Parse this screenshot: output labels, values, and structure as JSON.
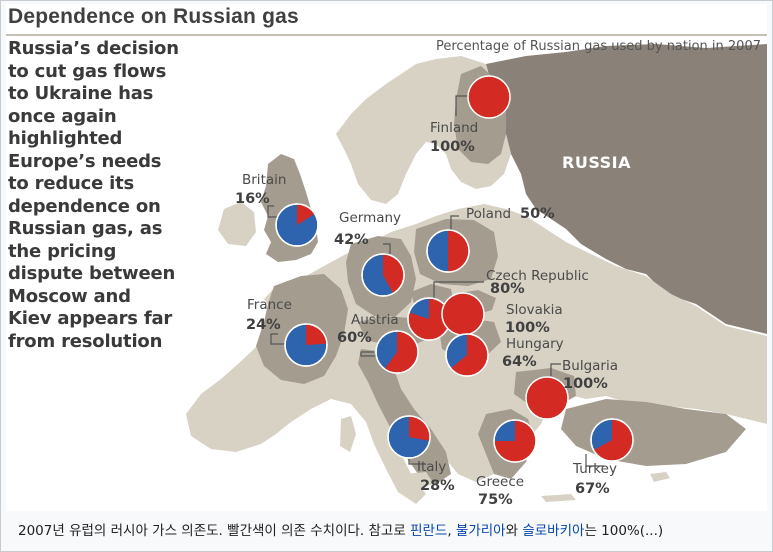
{
  "figure": {
    "title": "Dependence on Russian gas",
    "headline": "Russia’s decision\nto cut gas flows\nto Ukraine has\nonce again\nhighlighted\nEurope’s needs\nto reduce its\ndependence on\nRussian gas, as\nthe pricing\ndispute between\nMoscow and\nKiev appears far\nfrom resolution",
    "subtitle": "Percentage of Russian gas used by nation in 2007",
    "russia_label": "RUSSIA"
  },
  "colors": {
    "russian_share": "#d42a24",
    "other_share": "#2e63ad",
    "sea": "#ffffff",
    "land": "#d8d2c5",
    "land_highlight": "#a49c8f",
    "russia_land": "#8a8279"
  },
  "countries": [
    {
      "name": "Finland",
      "percent_label": "100%",
      "share": 100
    },
    {
      "name": "Britain",
      "percent_label": "16%",
      "share": 16
    },
    {
      "name": "Poland",
      "percent_label": "50%",
      "share": 50
    },
    {
      "name": "Germany",
      "percent_label": "42%",
      "share": 42
    },
    {
      "name": "Czech Republic",
      "percent_label": "80%",
      "share": 80
    },
    {
      "name": "Slovakia",
      "percent_label": "100%",
      "share": 100
    },
    {
      "name": "France",
      "percent_label": "24%",
      "share": 24
    },
    {
      "name": "Austria",
      "percent_label": "60%",
      "share": 60
    },
    {
      "name": "Hungary",
      "percent_label": "64%",
      "share": 64
    },
    {
      "name": "Bulgaria",
      "percent_label": "100%",
      "share": 100
    },
    {
      "name": "Italy",
      "percent_label": "28%",
      "share": 28
    },
    {
      "name": "Greece",
      "percent_label": "75%",
      "share": 75
    },
    {
      "name": "Turkey",
      "percent_label": "67%",
      "share": 67
    }
  ],
  "caption": {
    "text": "2007년 유럽의 러시아 가스 의존도. 빨간색이 의존 수치이다. 참고로 ",
    "link1": "핀란드",
    "sep1": ", ",
    "link2": "불가리아",
    "sep2": "와 ",
    "link3": "슬로바키아",
    "tail": "는 100%(...)"
  }
}
